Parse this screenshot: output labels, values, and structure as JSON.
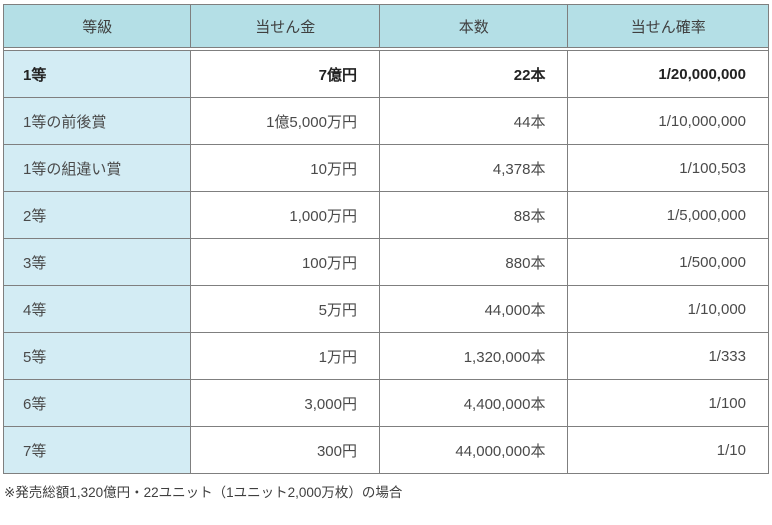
{
  "table": {
    "columns": [
      {
        "key": "rank",
        "label": "等級"
      },
      {
        "key": "prize",
        "label": "当せん金"
      },
      {
        "key": "count",
        "label": "本数"
      },
      {
        "key": "probability",
        "label": "当せん確率"
      }
    ],
    "rows": [
      {
        "rank": "1等",
        "prize": "7億円",
        "count": "22本",
        "probability": "1/20,000,000",
        "emphasis": true
      },
      {
        "rank": "1等の前後賞",
        "prize": "1億5,000万円",
        "count": "44本",
        "probability": "1/10,000,000",
        "emphasis": false
      },
      {
        "rank": "1等の組違い賞",
        "prize": "10万円",
        "count": "4,378本",
        "probability": "1/100,503",
        "emphasis": false
      },
      {
        "rank": "2等",
        "prize": "1,000万円",
        "count": "88本",
        "probability": "1/5,000,000",
        "emphasis": false
      },
      {
        "rank": "3等",
        "prize": "100万円",
        "count": "880本",
        "probability": "1/500,000",
        "emphasis": false
      },
      {
        "rank": "4等",
        "prize": "5万円",
        "count": "44,000本",
        "probability": "1/10,000",
        "emphasis": false
      },
      {
        "rank": "5等",
        "prize": "1万円",
        "count": "1,320,000本",
        "probability": "1/333",
        "emphasis": false
      },
      {
        "rank": "6等",
        "prize": "3,000円",
        "count": "4,400,000本",
        "probability": "1/100",
        "emphasis": false
      },
      {
        "rank": "7等",
        "prize": "300円",
        "count": "44,000,000本",
        "probability": "1/10",
        "emphasis": false
      }
    ]
  },
  "footnote": "※発売総額1,320億円・22ユニット（1ユニット2,000万枚）の場合",
  "colors": {
    "header_bg": "#b4dfe6",
    "rank_column_bg": "#d3ecf4",
    "cell_bg": "#ffffff",
    "border": "#7f7f7f",
    "text": "#4a4a4a",
    "emphasis_text": "#222222"
  }
}
